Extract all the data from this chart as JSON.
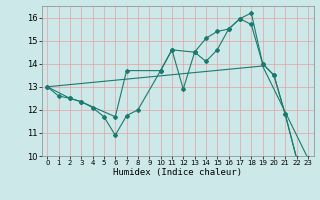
{
  "xlabel": "Humidex (Indice chaleur)",
  "xlim": [
    -0.5,
    23.5
  ],
  "ylim": [
    10,
    16.5
  ],
  "yticks": [
    10,
    11,
    12,
    13,
    14,
    15,
    16
  ],
  "xticks": [
    0,
    1,
    2,
    3,
    4,
    5,
    6,
    7,
    8,
    9,
    10,
    11,
    12,
    13,
    14,
    15,
    16,
    17,
    18,
    19,
    20,
    21,
    22,
    23
  ],
  "bg_color": "#cce8e8",
  "grid_color": "#e8a0a0",
  "line_color": "#1a7a6e",
  "line1_x": [
    0,
    1,
    2,
    3,
    4,
    5,
    6,
    7,
    8,
    10,
    11,
    12,
    13,
    14,
    15,
    16,
    17,
    18,
    19,
    20,
    21,
    22,
    23
  ],
  "line1_y": [
    13.0,
    12.6,
    12.5,
    12.35,
    12.1,
    11.7,
    10.9,
    11.75,
    12.0,
    13.7,
    14.6,
    12.9,
    14.5,
    15.1,
    15.4,
    15.5,
    15.95,
    16.2,
    14.0,
    13.5,
    11.8,
    9.9,
    9.9
  ],
  "line2_x": [
    0,
    2,
    3,
    6,
    7,
    10,
    11,
    13,
    14,
    15,
    16,
    17,
    18,
    19,
    20,
    21,
    22,
    23
  ],
  "line2_y": [
    13.0,
    12.5,
    12.35,
    11.7,
    13.7,
    13.7,
    14.6,
    14.5,
    14.1,
    14.6,
    15.5,
    15.95,
    15.7,
    14.0,
    13.5,
    11.8,
    9.9,
    9.9
  ],
  "line3_x": [
    0,
    19,
    23
  ],
  "line3_y": [
    13.0,
    13.9,
    9.9
  ],
  "figsize": [
    3.2,
    2.0
  ],
  "dpi": 100
}
